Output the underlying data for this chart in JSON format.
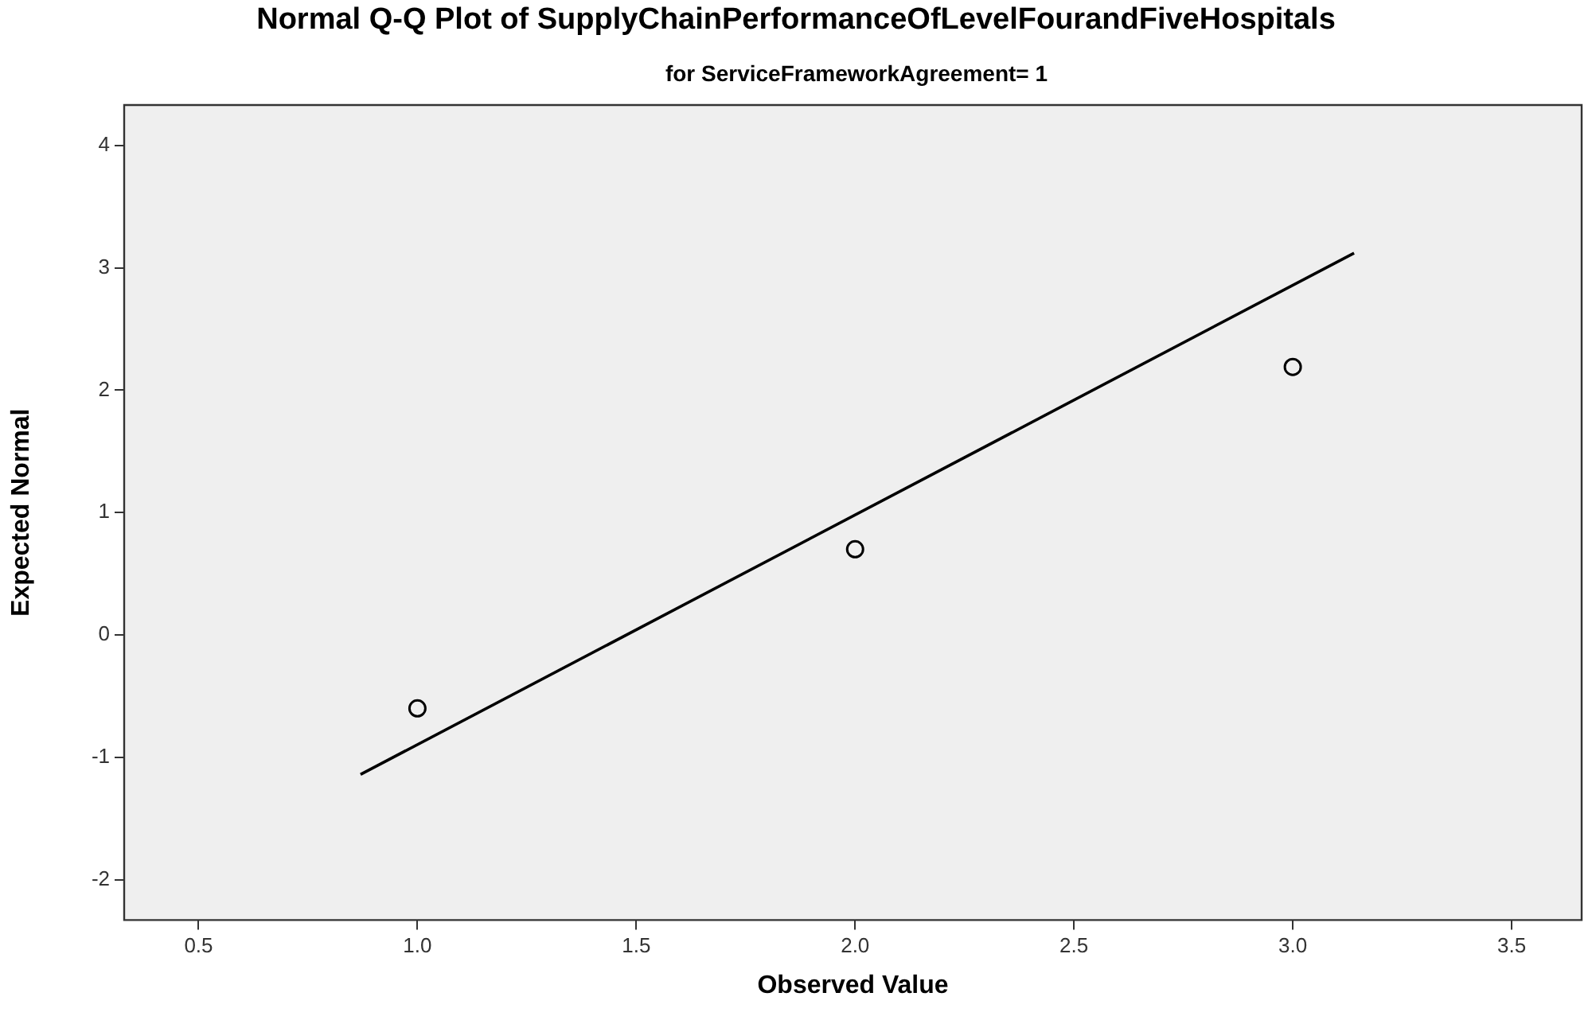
{
  "chart_data": {
    "type": "scatter",
    "title": "Normal Q-Q Plot of SupplyChainPerformanceOfLevelFourandFiveHospitals",
    "subtitle": "for ServiceFrameworkAgreement= 1",
    "xlabel": "Observed Value",
    "ylabel": "Expected Normal",
    "xlim": [
      0.33,
      3.66
    ],
    "xticks": [
      {
        "value": 0.5,
        "label": "0.5"
      },
      {
        "value": 1,
        "label": "1.0"
      },
      {
        "value": 1.5,
        "label": "1.5"
      },
      {
        "value": 2,
        "label": "2.0"
      },
      {
        "value": 2.5,
        "label": "2.5"
      },
      {
        "value": 3,
        "label": "3.0"
      },
      {
        "value": 3.5,
        "label": "3.5"
      }
    ],
    "ylim": [
      -2.33,
      4.33
    ],
    "yticks": [
      -2,
      -1,
      0,
      1,
      2,
      3,
      4
    ],
    "legend": false,
    "marker": "circle",
    "series": [
      {
        "color": "#000000",
        "x": [
          1,
          2,
          3
        ],
        "values": [
          -0.6,
          0.7,
          2.19
        ]
      },
      {
        "type": "line",
        "color": "#000000",
        "marker": "none",
        "line_style": "solid",
        "x": [
          0.87,
          3.14
        ],
        "values": [
          -1.14,
          3.12
        ]
      }
    ]
  }
}
